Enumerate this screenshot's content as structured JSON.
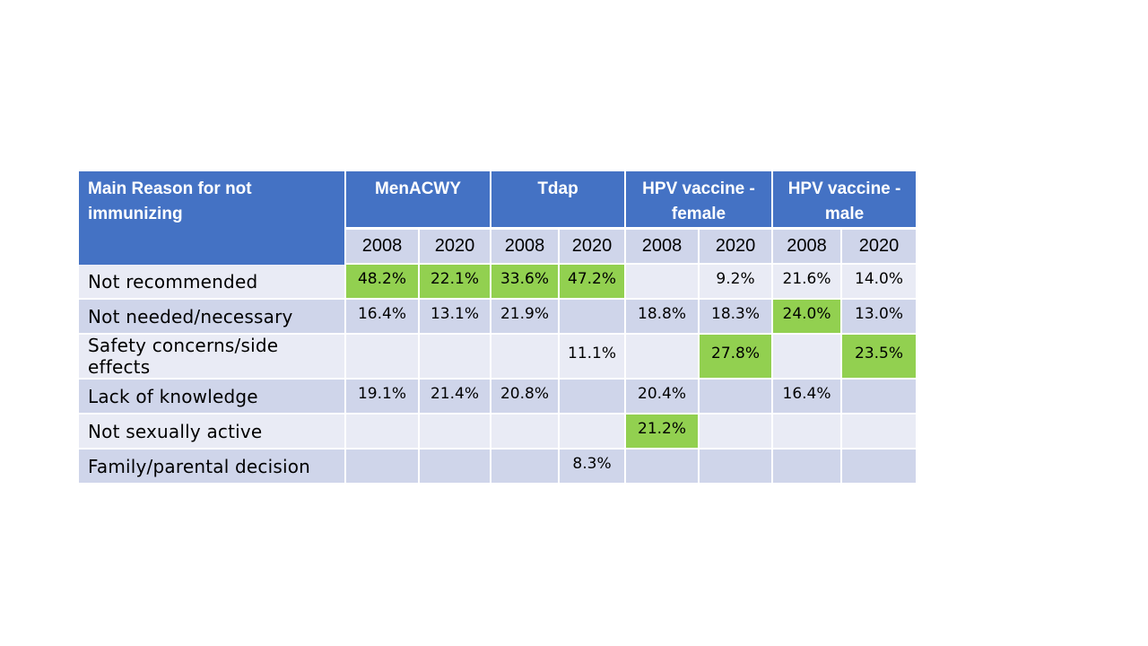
{
  "table": {
    "header": {
      "reason": "Main Reason for not immunizing",
      "vaccines": [
        "MenACWY",
        "Tdap",
        "HPV vaccine - female",
        "HPV vaccine - male"
      ],
      "years": [
        "2008",
        "2020",
        "2008",
        "2020",
        "2008",
        "2020",
        "2008",
        "2020"
      ]
    },
    "rows": [
      {
        "label": "Not recommended",
        "values": [
          "48.2%",
          "22.1%",
          "33.6%",
          "47.2%",
          "",
          "9.2%",
          "21.6%",
          "14.0%"
        ],
        "highlighted": [
          true,
          true,
          true,
          true,
          false,
          false,
          false,
          false
        ]
      },
      {
        "label": "Not needed/necessary",
        "values": [
          "16.4%",
          "13.1%",
          "21.9%",
          "",
          "18.8%",
          "18.3%",
          "24.0%",
          "13.0%"
        ],
        "highlighted": [
          false,
          false,
          false,
          false,
          false,
          false,
          true,
          false
        ]
      },
      {
        "label": "Safety concerns/side effects",
        "values": [
          "",
          "",
          "",
          "11.1%",
          "",
          "27.8%",
          "",
          "23.5%"
        ],
        "highlighted": [
          false,
          false,
          false,
          false,
          false,
          true,
          false,
          true
        ]
      },
      {
        "label": "Lack of knowledge",
        "values": [
          "19.1%",
          "21.4%",
          "20.8%",
          "",
          "20.4%",
          "",
          "16.4%",
          ""
        ],
        "highlighted": [
          false,
          false,
          false,
          false,
          false,
          false,
          false,
          false
        ]
      },
      {
        "label": "Not sexually active",
        "values": [
          "",
          "",
          "",
          "",
          "21.2%",
          "",
          "",
          ""
        ],
        "highlighted": [
          false,
          false,
          false,
          false,
          true,
          false,
          false,
          false
        ]
      },
      {
        "label": "Family/parental decision",
        "values": [
          "",
          "",
          "",
          "8.3%",
          "",
          "",
          "",
          ""
        ],
        "highlighted": [
          false,
          false,
          false,
          false,
          false,
          false,
          false,
          false
        ]
      }
    ]
  },
  "colors": {
    "header_bg": "#4472c4",
    "row_light": "#e9ebf5",
    "row_dark": "#cfd5ea",
    "highlight": "#92d050"
  }
}
